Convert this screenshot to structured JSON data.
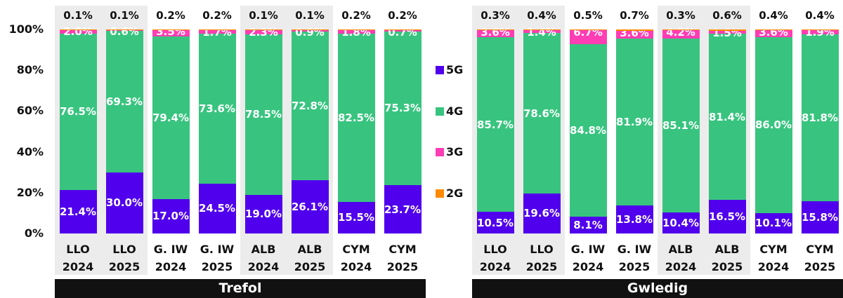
{
  "chart_data": [
    {
      "type": "stacked-bar",
      "title": "Trefol",
      "categories": [
        "LLO 2024",
        "LLO 2025",
        "G. IW 2024",
        "G. IW 2025",
        "ALB 2024",
        "ALB 2025",
        "CYM 2024",
        "CYM 2025"
      ],
      "series": [
        {
          "name": "5G",
          "color": "#5000ec",
          "values": [
            21.4,
            30.0,
            17.0,
            24.5,
            19.0,
            26.1,
            15.5,
            23.7
          ],
          "value_labels": [
            "21.4%",
            "30.0%",
            "17.0%",
            "24.5%",
            "19.0%",
            "26.1%",
            "15.5%",
            "23.7%"
          ]
        },
        {
          "name": "4G",
          "color": "#38c47f",
          "values": [
            76.5,
            69.3,
            79.4,
            73.6,
            78.5,
            72.8,
            82.5,
            75.3
          ],
          "value_labels": [
            "76.5%",
            "69.3%",
            "79.4%",
            "73.6%",
            "78.5%",
            "72.8%",
            "82.5%",
            "75.3%"
          ]
        },
        {
          "name": "3G",
          "color": "#ff3db4",
          "values": [
            2.0,
            0.6,
            3.5,
            1.7,
            2.3,
            0.9,
            1.8,
            0.7
          ],
          "value_labels": [
            "2.0%",
            "0.6%",
            "3.5%",
            "1.7%",
            "2.3%",
            "0.9%",
            "1.8%",
            "0.7%"
          ]
        },
        {
          "name": "2G",
          "color": "#ff8a00",
          "values": [
            0.1,
            0.1,
            0.2,
            0.2,
            0.1,
            0.1,
            0.2,
            0.2
          ],
          "value_labels": [
            "0.1%",
            "0.1%",
            "0.2%",
            "0.2%",
            "0.1%",
            "0.1%",
            "0.2%",
            "0.2%"
          ]
        }
      ],
      "ylim": [
        0,
        100
      ],
      "yticks": [
        {
          "value": 0,
          "label": "0%"
        },
        {
          "value": 20,
          "label": "20%"
        },
        {
          "value": 40,
          "label": "40%"
        },
        {
          "value": 60,
          "label": "60%"
        },
        {
          "value": 80,
          "label": "80%"
        },
        {
          "value": 100,
          "label": "100%"
        }
      ],
      "legend": "right"
    },
    {
      "type": "stacked-bar",
      "title": "Gwledig",
      "categories": [
        "LLO 2024",
        "LLO 2025",
        "G. IW 2024",
        "G. IW 2025",
        "ALB 2024",
        "ALB 2025",
        "CYM 2024",
        "CYM 2025"
      ],
      "series": [
        {
          "name": "5G",
          "color": "#5000ec",
          "values": [
            10.5,
            19.6,
            8.1,
            13.8,
            10.4,
            16.5,
            10.1,
            15.8
          ],
          "value_labels": [
            "10.5%",
            "19.6%",
            "8.1%",
            "13.8%",
            "10.4%",
            "16.5%",
            "10.1%",
            "15.8%"
          ]
        },
        {
          "name": "4G",
          "color": "#38c47f",
          "values": [
            85.7,
            78.6,
            84.8,
            81.9,
            85.1,
            81.4,
            86.0,
            81.8
          ],
          "value_labels": [
            "85.7%",
            "78.6%",
            "84.8%",
            "81.9%",
            "85.1%",
            "81.4%",
            "86.0%",
            "81.8%"
          ]
        },
        {
          "name": "3G",
          "color": "#ff3db4",
          "values": [
            3.6,
            1.4,
            6.7,
            3.6,
            4.2,
            1.5,
            3.6,
            1.9
          ],
          "value_labels": [
            "3.6%",
            "1.4%",
            "6.7%",
            "3.6%",
            "4.2%",
            "1.5%",
            "3.6%",
            "1.9%"
          ]
        },
        {
          "name": "2G",
          "color": "#ff8a00",
          "values": [
            0.3,
            0.4,
            0.5,
            0.7,
            0.3,
            0.6,
            0.4,
            0.4
          ],
          "value_labels": [
            "0.3%",
            "0.4%",
            "0.5%",
            "0.7%",
            "0.3%",
            "0.6%",
            "0.4%",
            "0.4%"
          ]
        }
      ],
      "ylim": [
        0,
        100
      ]
    }
  ]
}
